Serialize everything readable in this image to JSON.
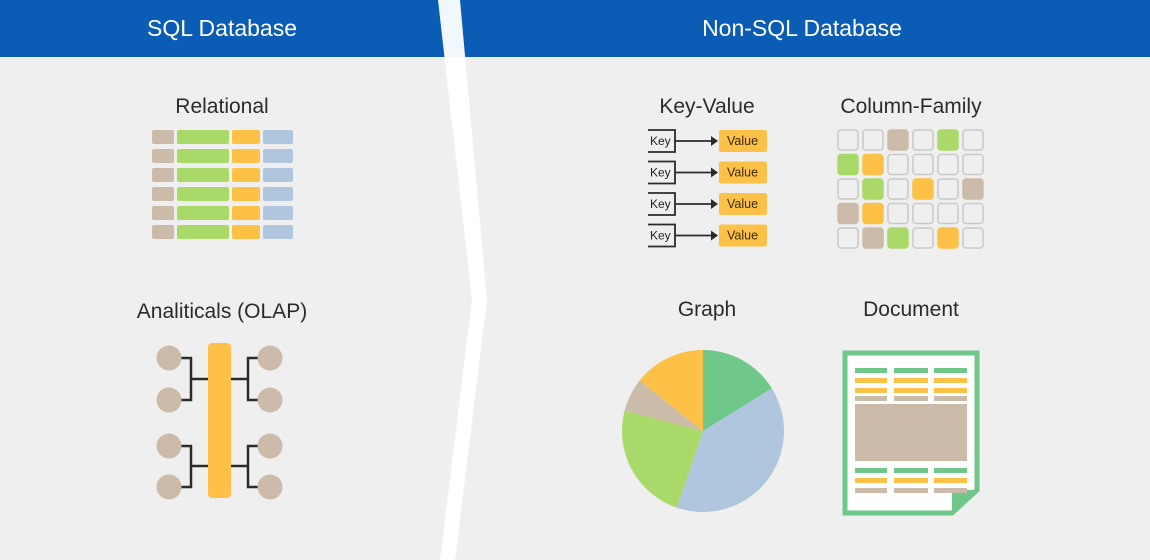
{
  "header": {
    "left_title": "SQL Database",
    "right_title": "Non-SQL Database",
    "color": "#0b5cb5"
  },
  "sql": {
    "relational": {
      "label": "Relational"
    },
    "olap": {
      "label": "Analiticals (OLAP)"
    }
  },
  "nosql": {
    "key_value": {
      "label": "Key-Value",
      "key_text": "Key",
      "value_text": "Value"
    },
    "column_family": {
      "label": "Column-Family"
    },
    "graph": {
      "label": "Graph",
      "slices": [
        {
          "name": "green",
          "value": 17,
          "color": "#6fc78a"
        },
        {
          "name": "blue",
          "value": 41,
          "color": "#b0c6df"
        },
        {
          "name": "lime",
          "value": 25,
          "color": "#a9d968"
        },
        {
          "name": "tan",
          "value": 7,
          "color": "#cdbbaa"
        },
        {
          "name": "orange",
          "value": 15,
          "color": "#fdc147"
        }
      ]
    },
    "document": {
      "label": "Document"
    }
  },
  "colors": {
    "tan": "#cdbbaa",
    "green": "#a9d968",
    "orange": "#fdc147",
    "blue": "#b0c6df",
    "doc_border": "#6fc78a"
  }
}
